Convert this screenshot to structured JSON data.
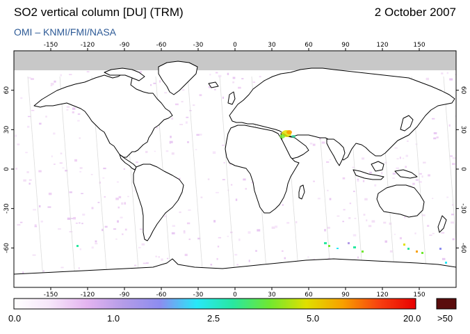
{
  "header": {
    "title": "SO2 vertical column [DU] (TRM)",
    "date": "2 October 2007",
    "credit": "OMI  –  KNMI/FMI/NASA"
  },
  "map": {
    "projection": "equirectangular",
    "lon_ticks": [
      -150,
      -120,
      -90,
      -60,
      -30,
      0,
      30,
      60,
      90,
      120,
      150
    ],
    "lat_ticks": [
      60,
      30,
      0,
      -30,
      -60
    ],
    "polar_no_data_color": "#c8c8c8",
    "ocean_color": "#ffffff",
    "coast_color": "#000000"
  },
  "colorbar": {
    "labels": [
      "0.0",
      "1.0",
      "2.5",
      "5.0",
      "20.0"
    ],
    "overflow_label": ">50",
    "gradient_stops": [
      "#ffffff",
      "#f6e6fa",
      "#e4b4f0",
      "#b49ce8",
      "#8c8cf0",
      "#28e8f8",
      "#28e8a0",
      "#70e830",
      "#e0e000",
      "#f8a000",
      "#f84010",
      "#e80000"
    ],
    "overflow_color": "#5a0c0c"
  }
}
